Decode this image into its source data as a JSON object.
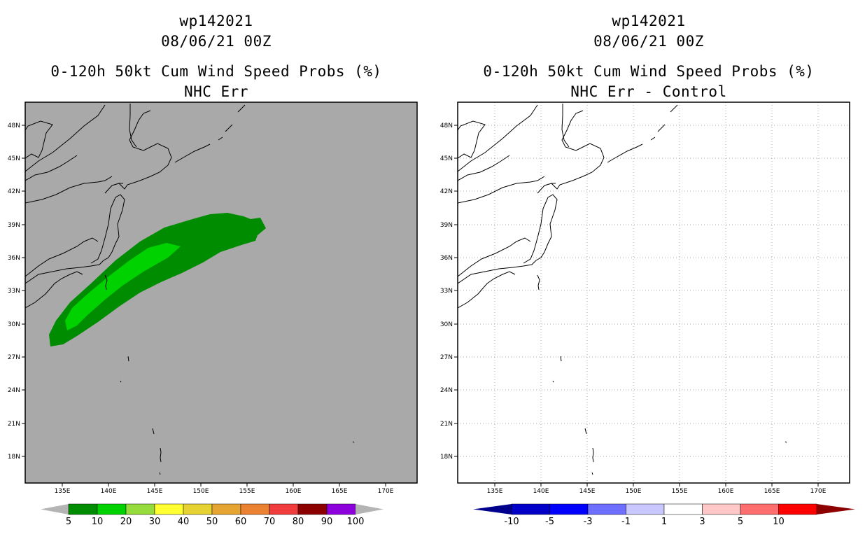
{
  "left": {
    "title_storm": "wp142021",
    "title_date": "08/06/21 00Z",
    "title_product": "0-120h 50kt Cum Wind Speed Probs (%)",
    "title_sub": "NHC Err",
    "lat_labels": [
      "48N",
      "45N",
      "42N",
      "39N",
      "36N",
      "33N",
      "30N",
      "27N",
      "24N",
      "21N",
      "18N"
    ],
    "lon_labels": [
      "135E",
      "140E",
      "145E",
      "150E",
      "155E",
      "160E",
      "165E",
      "170E"
    ],
    "colorbar": {
      "labels": [
        "5",
        "10",
        "20",
        "30",
        "40",
        "50",
        "60",
        "70",
        "80",
        "90",
        "100"
      ],
      "colors": [
        "#008c00",
        "#00d200",
        "#96dc3c",
        "#ffff32",
        "#e6d232",
        "#e6a532",
        "#eb8232",
        "#f03c3c",
        "#8c0000",
        "#8c00dc"
      ],
      "end_color": "#b4b4b4"
    },
    "background_color": "#a9a9a9",
    "prob_colors": {
      "outer": "#008c00",
      "inner": "#00d200"
    }
  },
  "right": {
    "title_storm": "wp142021",
    "title_date": "08/06/21 00Z",
    "title_product": "0-120h 50kt Cum Wind Speed Probs (%)",
    "title_sub": "NHC Err - Control",
    "lat_labels": [
      "48N",
      "45N",
      "42N",
      "39N",
      "36N",
      "33N",
      "30N",
      "27N",
      "24N",
      "21N",
      "18N"
    ],
    "lon_labels": [
      "135E",
      "140E",
      "145E",
      "150E",
      "155E",
      "160E",
      "165E",
      "170E"
    ],
    "colorbar": {
      "labels": [
        "-10",
        "-5",
        "-3",
        "-1",
        "1",
        "3",
        "5",
        "10"
      ],
      "colors": [
        "#0000c8",
        "#0000ff",
        "#6e6eff",
        "#c8c8ff",
        "#ffffff",
        "#ffc8c8",
        "#ff6e6e",
        "#ff0000"
      ],
      "low_color": "#00008c",
      "high_color": "#8c0000"
    },
    "background_color": "#ffffff"
  }
}
